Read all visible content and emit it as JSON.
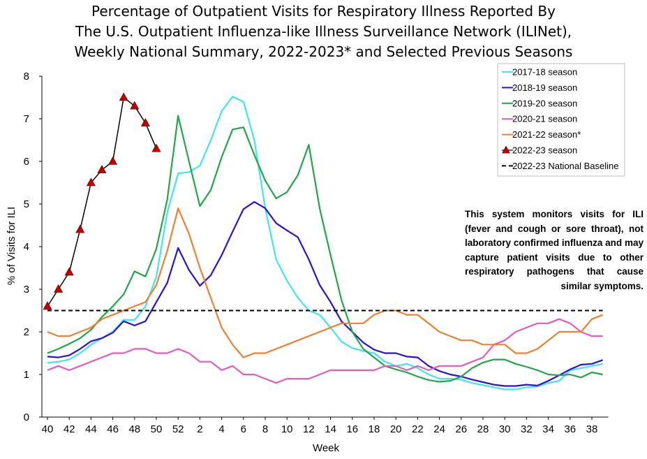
{
  "chart_data": {
    "type": "line",
    "title_lines": [
      "Percentage of Outpatient Visits for Respiratory Illness Reported By",
      "The U.S. Outpatient Influenza-like Illness Surveillance Network (ILINet),",
      "Weekly National Summary, 2022-2023* and Selected Previous Seasons"
    ],
    "xlabel": "Week",
    "ylabel": "% of Visits for ILI",
    "ylim": [
      0,
      8
    ],
    "yticks": [
      "0",
      "1",
      "2",
      "3",
      "4",
      "5",
      "6",
      "7",
      "8"
    ],
    "xticks": [
      "40",
      "42",
      "44",
      "46",
      "48",
      "50",
      "52",
      "2",
      "4",
      "6",
      "8",
      "10",
      "12",
      "14",
      "16",
      "18",
      "20",
      "22",
      "24",
      "26",
      "28",
      "30",
      "32",
      "34",
      "36",
      "38"
    ],
    "weeks": [
      "40",
      "41",
      "42",
      "43",
      "44",
      "45",
      "46",
      "47",
      "48",
      "49",
      "50",
      "51",
      "52",
      "1",
      "2",
      "3",
      "4",
      "5",
      "6",
      "7",
      "8",
      "9",
      "10",
      "11",
      "12",
      "13",
      "14",
      "15",
      "16",
      "17",
      "18",
      "19",
      "20",
      "21",
      "22",
      "23",
      "24",
      "25",
      "26",
      "27",
      "28",
      "29",
      "30",
      "31",
      "32",
      "33",
      "34",
      "35",
      "36",
      "37",
      "38",
      "39"
    ],
    "series": [
      {
        "name": "2017-18 season",
        "color": "#3fe6ef",
        "dash": "",
        "values": [
          1.27,
          1.3,
          1.35,
          1.5,
          1.7,
          1.85,
          2.0,
          2.28,
          2.28,
          2.6,
          3.3,
          4.8,
          5.72,
          5.75,
          5.9,
          6.5,
          7.18,
          7.52,
          7.4,
          6.5,
          4.9,
          3.7,
          3.2,
          2.8,
          2.5,
          2.4,
          2.1,
          1.77,
          1.62,
          1.55,
          1.5,
          1.3,
          1.2,
          1.25,
          1.15,
          1.0,
          0.9,
          0.9,
          0.88,
          0.8,
          0.75,
          0.7,
          0.65,
          0.65,
          0.7,
          0.72,
          0.8,
          0.85,
          1.1,
          1.15,
          1.2,
          1.25
        ]
      },
      {
        "name": "2018-19 season",
        "color": "#2a10df",
        "dash": "",
        "values": [
          1.42,
          1.4,
          1.45,
          1.6,
          1.78,
          1.85,
          1.98,
          2.25,
          2.15,
          2.25,
          2.7,
          3.15,
          3.97,
          3.45,
          3.08,
          3.33,
          3.8,
          4.35,
          4.88,
          5.05,
          4.9,
          4.55,
          4.38,
          4.22,
          3.7,
          3.1,
          2.7,
          2.25,
          2.0,
          1.75,
          1.58,
          1.5,
          1.5,
          1.42,
          1.4,
          1.2,
          1.08,
          1.0,
          0.95,
          0.88,
          0.82,
          0.76,
          0.73,
          0.73,
          0.76,
          0.74,
          0.85,
          0.98,
          1.12,
          1.23,
          1.25,
          1.34
        ]
      },
      {
        "name": "2019-20 season",
        "color": "#1fa74a",
        "dash": "",
        "values": [
          1.5,
          1.6,
          1.72,
          1.85,
          2.05,
          2.35,
          2.6,
          2.88,
          3.42,
          3.3,
          3.95,
          5.1,
          7.07,
          6.0,
          4.95,
          5.33,
          6.1,
          6.75,
          6.8,
          6.15,
          5.55,
          5.13,
          5.28,
          5.68,
          6.39,
          4.9,
          3.8,
          2.75,
          2.0,
          1.6,
          1.4,
          1.2,
          1.12,
          1.05,
          0.95,
          0.87,
          0.83,
          0.85,
          0.95,
          1.15,
          1.28,
          1.35,
          1.35,
          1.25,
          1.18,
          1.1,
          1.0,
          0.98,
          1.0,
          0.93,
          1.05,
          1.0
        ]
      },
      {
        "name": "2020-21 season",
        "color": "#e85bb8",
        "dash": "",
        "values": [
          1.1,
          1.2,
          1.1,
          1.2,
          1.3,
          1.4,
          1.5,
          1.5,
          1.6,
          1.6,
          1.5,
          1.5,
          1.6,
          1.5,
          1.3,
          1.3,
          1.1,
          1.2,
          1.0,
          1.0,
          0.9,
          0.8,
          0.9,
          0.9,
          0.9,
          1.0,
          1.1,
          1.1,
          1.1,
          1.1,
          1.1,
          1.2,
          1.2,
          1.1,
          1.2,
          1.1,
          1.2,
          1.2,
          1.2,
          1.3,
          1.4,
          1.7,
          1.8,
          2.0,
          2.1,
          2.2,
          2.2,
          2.3,
          2.2,
          2.0,
          1.9,
          1.9
        ]
      },
      {
        "name": "2021-22 season*",
        "color": "#f0802c",
        "dash": "",
        "values": [
          2.0,
          1.9,
          1.9,
          2.0,
          2.1,
          2.3,
          2.4,
          2.5,
          2.6,
          2.7,
          3.1,
          3.9,
          4.9,
          4.3,
          3.5,
          2.8,
          2.1,
          1.7,
          1.4,
          1.5,
          1.5,
          1.6,
          1.7,
          1.8,
          1.9,
          2.0,
          2.1,
          2.2,
          2.2,
          2.2,
          2.4,
          2.5,
          2.5,
          2.4,
          2.4,
          2.2,
          2.0,
          1.9,
          1.8,
          1.8,
          1.7,
          1.7,
          1.7,
          1.5,
          1.5,
          1.6,
          1.8,
          2.0,
          2.0,
          2.0,
          2.3,
          2.4
        ]
      },
      {
        "name": "2022-23 season",
        "color": "#000000",
        "marker": "triangle",
        "markerColor": "#c00000",
        "dash": "",
        "values": [
          2.6,
          3.0,
          3.4,
          4.4,
          5.5,
          5.8,
          6.0,
          7.5,
          7.3,
          6.9,
          6.3
        ]
      },
      {
        "name": "2022-23 National Baseline",
        "color": "#000000",
        "dash": "6,4",
        "baseline": 2.5
      }
    ]
  },
  "note": "This system monitors visits for ILI (fever and cough or sore throat), not laboratory confirmed influenza and may capture patient visits due to other respiratory pathogens that cause similar symptoms."
}
